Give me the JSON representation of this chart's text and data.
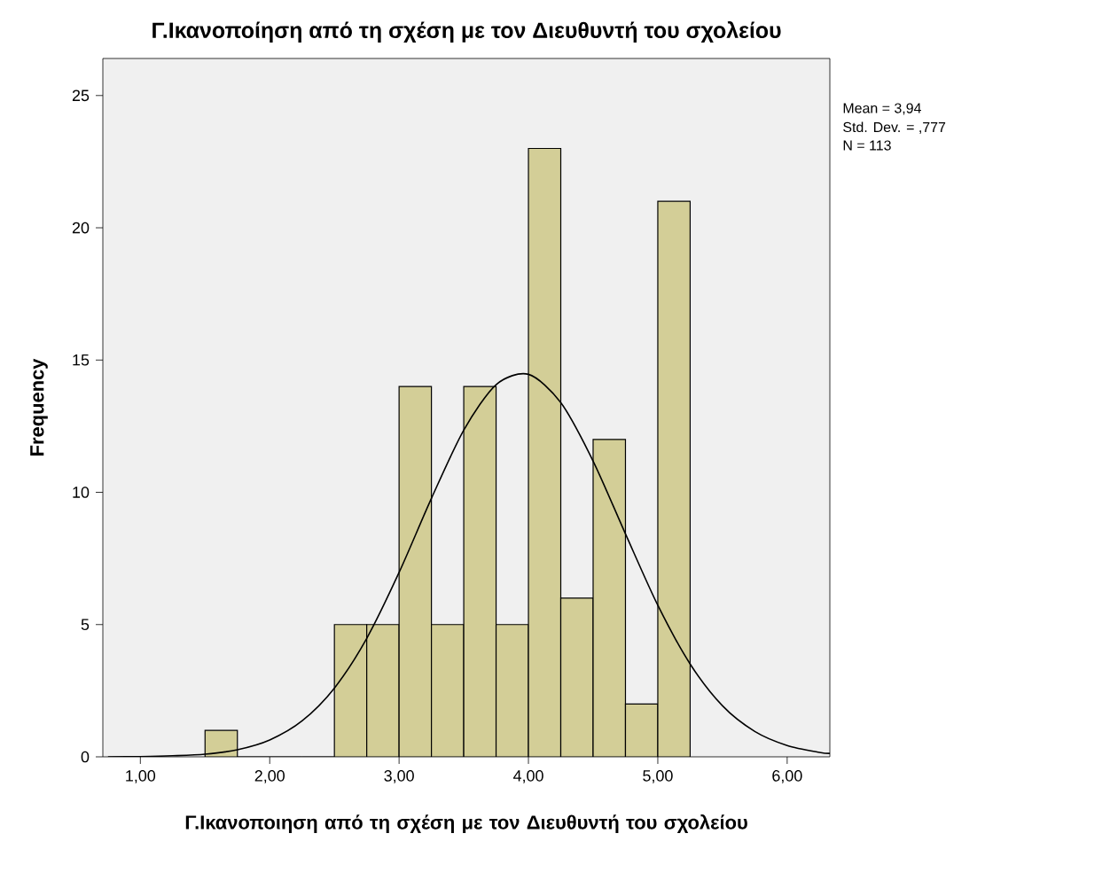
{
  "chart_data": {
    "type": "histogram",
    "title": "Γ.Ικανοποίηση από τη σχέση με τον Διευθυντή του σχολείου",
    "xlabel": "Γ.Ικανοποιηση από τη σχέση με τον Διευθυντή του σχολείου",
    "ylabel": "Frequency",
    "bins": [
      1.5,
      1.75,
      2.0,
      2.25,
      2.5,
      2.75,
      3.0,
      3.25,
      3.5,
      3.75,
      4.0,
      4.25,
      4.5,
      4.75,
      5.0,
      5.25
    ],
    "values": [
      1,
      0,
      0,
      0,
      5,
      5,
      14,
      5,
      14,
      5,
      23,
      6,
      12,
      2,
      21
    ],
    "color": "#d3ce97",
    "series": [
      {
        "type": "line",
        "color": "#000000",
        "x": [
          0.75,
          1.0,
          1.25,
          1.5,
          1.75,
          2.0,
          2.25,
          2.5,
          2.75,
          3.0,
          3.25,
          3.5,
          3.75,
          4.0,
          4.25,
          4.5,
          4.75,
          5.0,
          5.25,
          5.5,
          5.75,
          6.0,
          6.25,
          6.33
        ],
        "values": [
          0.0,
          0.01,
          0.04,
          0.1,
          0.27,
          0.64,
          1.36,
          2.6,
          4.48,
          6.97,
          9.77,
          12.35,
          14.07,
          14.46,
          13.39,
          11.18,
          8.43,
          5.73,
          3.51,
          1.93,
          0.96,
          0.43,
          0.17,
          0.13
        ]
      }
    ],
    "xlim": [
      0.71,
      6.33
    ],
    "ylim": [
      0,
      26.4
    ],
    "xticks": [
      {
        "value": 1,
        "label": "1,00"
      },
      {
        "value": 2,
        "label": "2,00"
      },
      {
        "value": 3,
        "label": "3,00"
      },
      {
        "value": 4,
        "label": "4,00"
      },
      {
        "value": 5,
        "label": "5,00"
      },
      {
        "value": 6,
        "label": "6,00"
      }
    ],
    "yticks": [
      0,
      5,
      10,
      15,
      20,
      25
    ],
    "annotations": [
      "Mean = 3,94",
      "Std. Dev. = ,777",
      "N = 113"
    ]
  }
}
